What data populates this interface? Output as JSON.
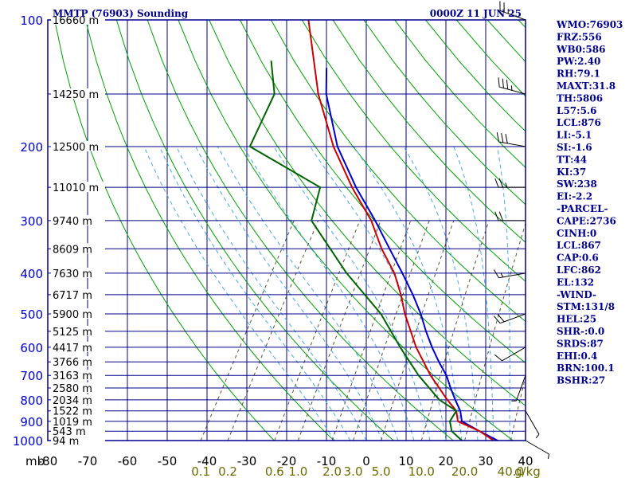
{
  "header": {
    "title": "MMTP (76903) Sounding",
    "time": "0000Z 11 JUN 25"
  },
  "chart_data": {
    "type": "skewt",
    "xlabel": "mb",
    "ylabel": "",
    "pressure_levels": [
      100,
      200,
      300,
      400,
      500,
      600,
      700,
      800,
      900,
      1000
    ],
    "pressure_labels": [
      "100",
      "200",
      "300",
      "400",
      "500",
      "600",
      "700",
      "800",
      "900",
      "1000"
    ],
    "height_marks": [
      {
        "p": 100,
        "label": "16660 m"
      },
      {
        "p": 150,
        "label": "14250 m"
      },
      {
        "p": 200,
        "label": "12500 m"
      },
      {
        "p": 250,
        "label": "11010 m"
      },
      {
        "p": 300,
        "label": "9740 m"
      },
      {
        "p": 350,
        "label": "8609 m"
      },
      {
        "p": 400,
        "label": "7630 m"
      },
      {
        "p": 450,
        "label": "6717 m"
      },
      {
        "p": 500,
        "label": "5900 m"
      },
      {
        "p": 550,
        "label": "5125 m"
      },
      {
        "p": 600,
        "label": "4417 m"
      },
      {
        "p": 650,
        "label": "3766 m"
      },
      {
        "p": 700,
        "label": "3163 m"
      },
      {
        "p": 750,
        "label": "2580 m"
      },
      {
        "p": 800,
        "label": "2034 m"
      },
      {
        "p": 850,
        "label": "1522 m"
      },
      {
        "p": 900,
        "label": "1019 m"
      },
      {
        "p": 950,
        "label": "543 m"
      },
      {
        "p": 1000,
        "label": "94 m"
      }
    ],
    "temperature_axis": {
      "labels": [
        "-80",
        "-70",
        "-60",
        "-50",
        "-40",
        "-30",
        "-20",
        "-10",
        "0",
        "10",
        "20",
        "30",
        "40"
      ],
      "values": [
        -80,
        -70,
        -60,
        -50,
        -40,
        -30,
        -20,
        -10,
        0,
        10,
        20,
        30,
        40
      ]
    },
    "mixing_ratio_axis": {
      "unit": "g/kg",
      "labels": [
        "0.1",
        "0.2",
        "0.6",
        "1.0",
        "2.0",
        "3.0",
        "5.0",
        "10.0",
        "20.0",
        "40.0"
      ],
      "values": [
        0.1,
        0.2,
        0.6,
        1.0,
        2.0,
        3.0,
        5.0,
        10.0,
        20.0,
        40.0
      ]
    },
    "series": [
      {
        "color": "#0000cc",
        "values": [
          [
            1000,
            33
          ],
          [
            950,
            27
          ],
          [
            900,
            21
          ],
          [
            850,
            19
          ],
          [
            800,
            16
          ],
          [
            750,
            13
          ],
          [
            700,
            10
          ],
          [
            650,
            6
          ],
          [
            600,
            2
          ],
          [
            550,
            -2
          ],
          [
            500,
            -6
          ],
          [
            450,
            -11
          ],
          [
            400,
            -17
          ],
          [
            350,
            -24
          ],
          [
            300,
            -32
          ],
          [
            250,
            -42
          ],
          [
            200,
            -53
          ],
          [
            150,
            -64
          ],
          [
            130,
            -68
          ]
        ]
      },
      {
        "color": "#cc0000",
        "values": [
          [
            1000,
            32
          ],
          [
            950,
            27
          ],
          [
            900,
            20
          ],
          [
            850,
            18
          ],
          [
            800,
            14
          ],
          [
            700,
            6
          ],
          [
            600,
            -2
          ],
          [
            500,
            -10
          ],
          [
            450,
            -14
          ],
          [
            400,
            -19
          ],
          [
            350,
            -26
          ],
          [
            300,
            -33
          ],
          [
            250,
            -43
          ],
          [
            200,
            -54
          ],
          [
            150,
            -66
          ],
          [
            100,
            -80
          ]
        ]
      },
      {
        "color": "#006400",
        "values": [
          [
            1000,
            24
          ],
          [
            950,
            20
          ],
          [
            900,
            18
          ],
          [
            850,
            18
          ],
          [
            800,
            12
          ],
          [
            700,
            3
          ],
          [
            600,
            -6
          ],
          [
            500,
            -16
          ],
          [
            400,
            -31
          ],
          [
            300,
            -48
          ],
          [
            250,
            -51
          ],
          [
            200,
            -75
          ],
          [
            150,
            -77
          ],
          [
            125,
            -83
          ]
        ]
      }
    ],
    "wind_profile": [
      {
        "p": 100,
        "dir": 290,
        "spd": 25
      },
      {
        "p": 150,
        "dir": 285,
        "spd": 35
      },
      {
        "p": 200,
        "dir": 280,
        "spd": 30
      },
      {
        "p": 250,
        "dir": 270,
        "spd": 25
      },
      {
        "p": 300,
        "dir": 270,
        "spd": 20
      },
      {
        "p": 400,
        "dir": 260,
        "spd": 15
      },
      {
        "p": 500,
        "dir": 250,
        "spd": 20
      },
      {
        "p": 600,
        "dir": 240,
        "spd": 10
      },
      {
        "p": 700,
        "dir": 200,
        "spd": 5
      },
      {
        "p": 850,
        "dir": 150,
        "spd": 5
      },
      {
        "p": 1000,
        "dir": 120,
        "spd": 5
      }
    ],
    "indices": [
      "WMO:76903",
      "FRZ:556",
      "WB0:586",
      "PW:2.40",
      "RH:79.1",
      "MAXT:31.8",
      "TH:5806",
      "L57:5.6",
      "LCL:876",
      "LI:-5.1",
      "SI:-1.6",
      "TT:44",
      "KI:37",
      "SW:238",
      "EI:-2.2",
      "-PARCEL-",
      "CAPE:2736",
      "CINH:0",
      "LCL:867",
      "CAP:0.6",
      "LFC:862",
      "EL:132",
      "-WIND-",
      "STM:131/8",
      "HEL:25",
      "SHR-:0.0",
      "SRDS:87",
      "EHI:0.4",
      "BRN:100.1",
      "BSHR:27"
    ]
  }
}
